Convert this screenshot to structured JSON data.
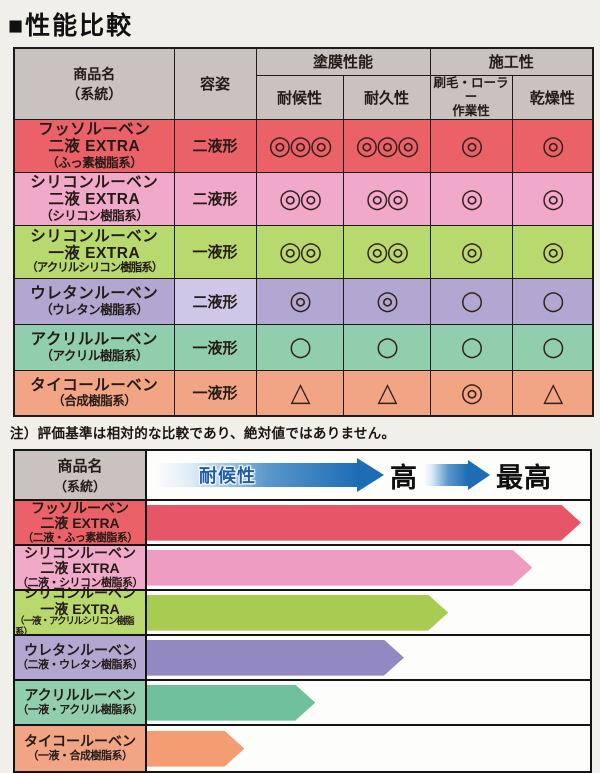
{
  "page": {
    "title": "■性能比較",
    "note": "注）評価基準は相対的な比較であり、絶対値ではありません。"
  },
  "table": {
    "headers": {
      "product": "商品名",
      "product_sub": "（系統）",
      "form": "容姿",
      "group_coating": "塗膜性能",
      "group_workability": "施工性",
      "col_weather": "耐候性",
      "col_durability": "耐久性",
      "col_brush_1": "刷毛・ローラー",
      "col_brush_2": "作業性",
      "col_drying": "乾燥性",
      "header_bg": "#c9c2bf"
    },
    "legend": {
      "best": "◎",
      "good": "○",
      "fair": "△"
    },
    "rows": [
      {
        "name": "フッソルーベン",
        "name2": "二液 EXTRA",
        "system": "（ふっ素樹脂系）",
        "form": "二液形",
        "ratings": [
          "◎◎◎",
          "◎◎◎",
          "◎",
          "◎"
        ],
        "bg": "#ea6168"
      },
      {
        "name": "シリコンルーベン",
        "name2": "二液 EXTRA",
        "system": "（シリコン樹脂系）",
        "form": "二液形",
        "ratings": [
          "◎◎",
          "◎◎",
          "◎",
          "◎"
        ],
        "bg": "#f1a9ca"
      },
      {
        "name": "シリコンルーベン",
        "name2": "一液 EXTRA",
        "system": "（アクリルシリコン樹脂系）",
        "form": "一液形",
        "ratings": [
          "◎◎",
          "◎◎",
          "◎",
          "◎"
        ],
        "bg": "#b8d96d"
      },
      {
        "name": "ウレタンルーベン",
        "name2": "",
        "system": "（ウレタン樹脂系）",
        "form": "二液形",
        "ratings": [
          "◎",
          "◎",
          "○",
          "○"
        ],
        "bg": "#b1a7d0",
        "form_bg": "#cfc7e8"
      },
      {
        "name": "アクリルルーベン",
        "name2": "",
        "system": "（アクリル樹脂系）",
        "form": "一液形",
        "ratings": [
          "○",
          "○",
          "○",
          "○"
        ],
        "bg": "#90cead"
      },
      {
        "name": "タイコールーベン",
        "name2": "",
        "system": "（合成樹脂系）",
        "form": "一液形",
        "ratings": [
          "△",
          "△",
          "◎",
          "△"
        ],
        "bg": "#f2a585"
      }
    ]
  },
  "chart_data": {
    "type": "bar",
    "orientation": "horizontal",
    "title": "耐候性",
    "header": {
      "product": "商品名",
      "product_sub": "（系統）",
      "axis_label": "耐候性",
      "mid_label": "高",
      "end_label": "最高",
      "arrow_color": "#1e6db4"
    },
    "axis_note": "relative scale from low (left) to 最高 (right), no numeric ticks shown",
    "categories": [
      "フッソルーベン 二液 EXTRA（二液・ふっ素樹脂系）",
      "シリコンルーベン 二液 EXTRA（二液・シリコン樹脂系）",
      "シリコンルーベン 一液 EXTRA（一液・アクリルシリコン樹脂系）",
      "ウレタンルーベン（二液・ウレタン樹脂系）",
      "アクリルルーベン（一液・アクリル樹脂系）",
      "タイコールーベン（一液・合成樹脂系）"
    ],
    "values_percent": [
      98,
      87,
      68,
      58,
      38,
      22
    ],
    "rows": [
      {
        "name": "フッソルーベン",
        "name2": "二液 EXTRA",
        "system": "（二液・ふっ素樹脂系）",
        "value_percent": 98,
        "bar_color": "#e75568",
        "bg": "#ea6168"
      },
      {
        "name": "シリコンルーベン",
        "name2": "二液 EXTRA",
        "system": "（二液・シリコン樹脂系）",
        "value_percent": 87,
        "bar_color": "#ef9cc3",
        "bg": "#f1a9ca"
      },
      {
        "name": "シリコンルーベン",
        "name2": "一液 EXTRA",
        "system": "（一液・アクリルシリコン樹脂系）",
        "value_percent": 68,
        "bar_color": "#a8cc52",
        "bg": "#b8d96d"
      },
      {
        "name": "ウレタンルーベン",
        "name2": "",
        "system": "（二液・ウレタン樹脂系）",
        "value_percent": 58,
        "bar_color": "#9389c2",
        "bg": "#b1a7d0"
      },
      {
        "name": "アクリルルーベン",
        "name2": "",
        "system": "（一液・アクリル樹脂系）",
        "value_percent": 38,
        "bar_color": "#6ec19c",
        "bg": "#90cead"
      },
      {
        "name": "タイコールーベン",
        "name2": "",
        "system": "（一液・合成樹脂系）",
        "value_percent": 22,
        "bar_color": "#f49d72",
        "bg": "#f2a585"
      }
    ]
  }
}
